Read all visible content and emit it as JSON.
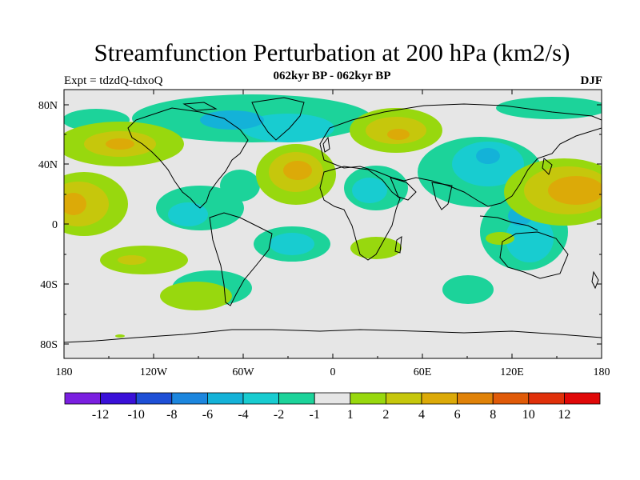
{
  "header": {
    "title": "Streamfunction Perturbation at 200 hPa (km2/s)",
    "expt": "Expt = tdzdQ-tdxoQ",
    "period": "062kyr BP - 062kyr BP",
    "season": "DJF"
  },
  "map": {
    "lat_labels": [
      "80N",
      "40N",
      "0",
      "40S",
      "80S"
    ],
    "lon_labels": [
      "180",
      "120W",
      "60W",
      "0",
      "60E",
      "120E",
      "180"
    ]
  },
  "colorbar": {
    "labels": [
      "-12",
      "-10",
      "-8",
      "-6",
      "-4",
      "-2",
      "-1",
      "1",
      "2",
      "4",
      "6",
      "8",
      "10",
      "12"
    ],
    "colors": [
      "#7a1fe0",
      "#3a10d8",
      "#1e4fd6",
      "#1c86de",
      "#14b2d8",
      "#18ccd0",
      "#1cd39a",
      "#e6e6e6",
      "#98d80e",
      "#c6c70c",
      "#dcaa08",
      "#e08208",
      "#e05a08",
      "#e0300a",
      "#e00808"
    ]
  }
}
